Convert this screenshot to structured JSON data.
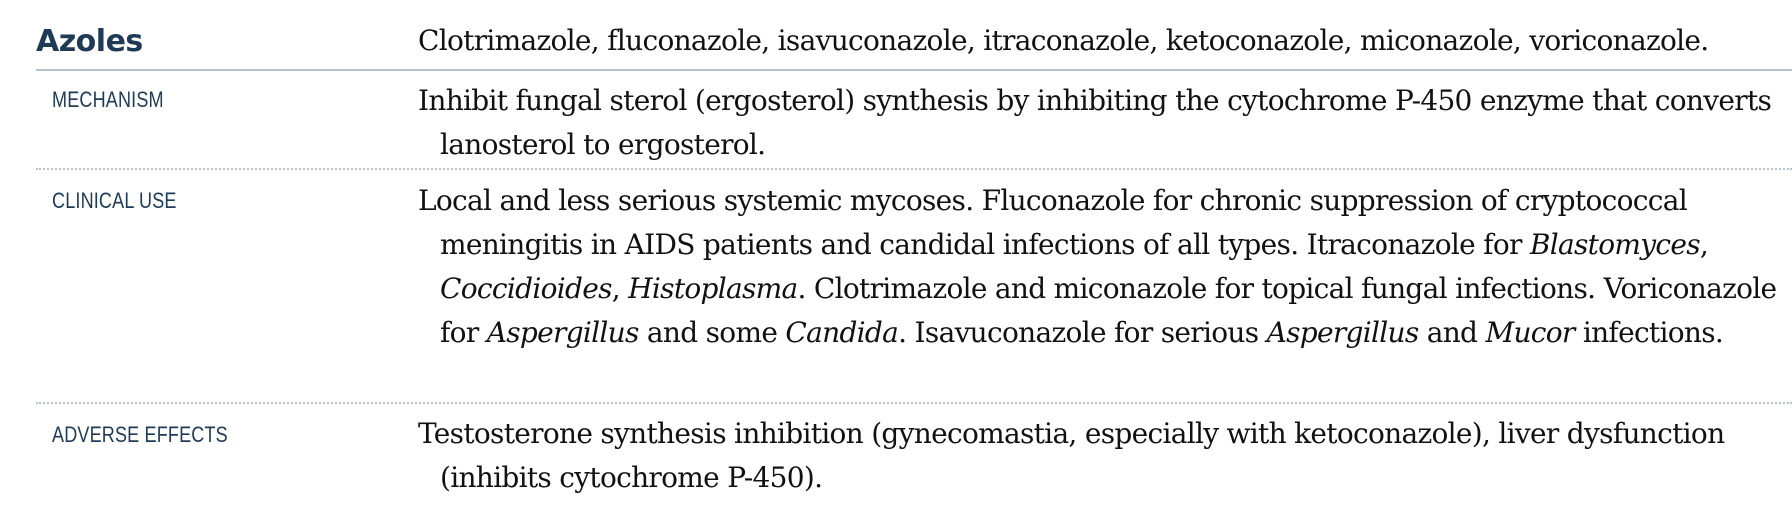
{
  "section": {
    "title": "Azoles",
    "drugs": "Clotrimazole, fluconazole, isavuconazole, itraconazole, ketoconazole, miconazole, voriconazole."
  },
  "rows": {
    "mechanism": {
      "label": "MECHANISM",
      "text": "Inhibit fungal sterol (ergosterol) synthesis by inhibiting the cytochrome P-450 enzyme that converts lanosterol to ergosterol."
    },
    "clinical_use": {
      "label": "CLINICAL USE",
      "t1": "Local and less serious systemic mycoses. Fluconazole for chronic suppression of cryptococcal meningitis in AIDS patients and candidal infections of all types. Itraconazole for ",
      "i1": "Blastomyces",
      "t2": ", ",
      "i2": "Coccidioides",
      "t3": ", ",
      "i3": "Histoplasma",
      "t4": ". Clotrimazole and miconazole for topical fungal infections. Voriconazole for ",
      "i4": "Aspergillus",
      "t5": " and some ",
      "i5": "Candida",
      "t6": ". Isavuconazole for serious ",
      "i6": "Aspergillus",
      "t7": " and ",
      "i7": "Mucor",
      "t8": " infections."
    },
    "adverse_effects": {
      "label": "ADVERSE EFFECTS",
      "text": "Testosterone synthesis inhibition (gynecomastia, especially with ketoconazole), liver dysfunction (inhibits cytochrome P-450)."
    }
  }
}
